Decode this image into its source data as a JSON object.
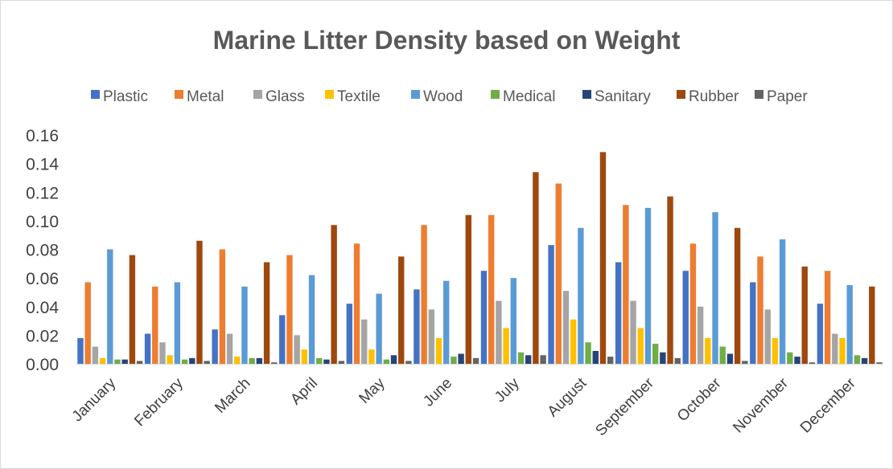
{
  "chart_data": {
    "type": "bar",
    "title": "Marine Litter Density based on Weight",
    "xlabel": "",
    "ylabel": "",
    "ylim": [
      0,
      0.16
    ],
    "yticks": [
      "0.00",
      "0.02",
      "0.04",
      "0.06",
      "0.08",
      "0.10",
      "0.12",
      "0.14",
      "0.16"
    ],
    "grid": false,
    "legend": "top",
    "categories": [
      "January",
      "February",
      "March",
      "April",
      "May",
      "June",
      "July",
      "August",
      "September",
      "October",
      "November",
      "December"
    ],
    "series": [
      {
        "name": "Plastic",
        "color": "#4472C4",
        "values": [
          0.018,
          0.021,
          0.024,
          0.034,
          0.042,
          0.052,
          0.065,
          0.083,
          0.071,
          0.065,
          0.057,
          0.042
        ]
      },
      {
        "name": "Metal",
        "color": "#ED7D31",
        "values": [
          0.057,
          0.054,
          0.08,
          0.076,
          0.084,
          0.097,
          0.104,
          0.126,
          0.111,
          0.084,
          0.075,
          0.065
        ]
      },
      {
        "name": "Glass",
        "color": "#A5A5A5",
        "values": [
          0.012,
          0.015,
          0.021,
          0.02,
          0.031,
          0.038,
          0.044,
          0.051,
          0.044,
          0.04,
          0.038,
          0.021
        ]
      },
      {
        "name": "Textile",
        "color": "#FFC000",
        "values": [
          0.004,
          0.006,
          0.005,
          0.01,
          0.01,
          0.018,
          0.025,
          0.031,
          0.025,
          0.018,
          0.018,
          0.018
        ]
      },
      {
        "name": "Wood",
        "color": "#5B9BD5",
        "values": [
          0.08,
          0.057,
          0.054,
          0.062,
          0.049,
          0.058,
          0.06,
          0.095,
          0.109,
          0.106,
          0.087,
          0.055
        ]
      },
      {
        "name": "Medical",
        "color": "#70AD47",
        "values": [
          0.003,
          0.003,
          0.004,
          0.004,
          0.003,
          0.005,
          0.008,
          0.015,
          0.014,
          0.012,
          0.008,
          0.006
        ]
      },
      {
        "name": "Sanitary",
        "color": "#264478",
        "values": [
          0.003,
          0.004,
          0.004,
          0.003,
          0.006,
          0.007,
          0.006,
          0.009,
          0.008,
          0.007,
          0.005,
          0.004
        ]
      },
      {
        "name": "Rubber",
        "color": "#9E480E",
        "values": [
          0.076,
          0.086,
          0.071,
          0.097,
          0.075,
          0.104,
          0.134,
          0.148,
          0.117,
          0.095,
          0.068,
          0.054
        ]
      },
      {
        "name": "Paper",
        "color": "#636363",
        "values": [
          0.002,
          0.002,
          0.001,
          0.002,
          0.002,
          0.004,
          0.006,
          0.005,
          0.004,
          0.002,
          0.001,
          0.001
        ]
      }
    ]
  }
}
